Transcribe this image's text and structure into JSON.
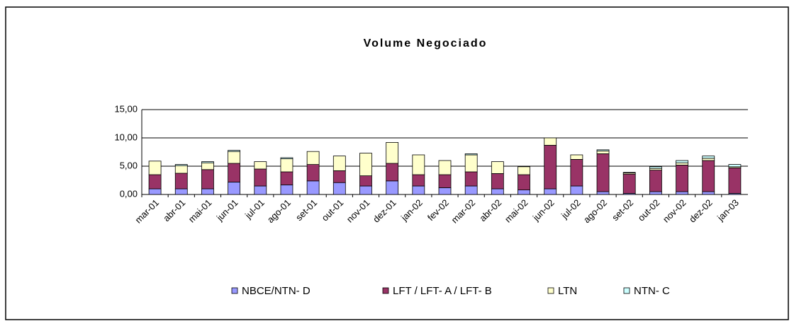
{
  "chart_data": {
    "type": "stacked_bar",
    "title": "Volume Negociado",
    "categories": [
      "mar-01",
      "abr-01",
      "mai-01",
      "jun-01",
      "jul-01",
      "ago-01",
      "set-01",
      "out-01",
      "nov-01",
      "dez-01",
      "jan-02",
      "fev-02",
      "mar-02",
      "abr-02",
      "mai-02",
      "jun-02",
      "jul-02",
      "ago-02",
      "set-02",
      "out-02",
      "nov-02",
      "dez-02",
      "jan-03"
    ],
    "series": [
      {
        "name": "NBCE/NTN- D",
        "color": "#9999ff",
        "values": [
          1.0,
          1.0,
          1.0,
          2.2,
          1.5,
          1.7,
          2.4,
          2.1,
          1.5,
          2.4,
          1.5,
          1.2,
          1.5,
          1.0,
          0.8,
          1.0,
          1.5,
          0.5,
          0.2,
          0.5,
          0.5,
          0.5,
          0.2
        ]
      },
      {
        "name": "LFT / LFT- A / LFT- B",
        "color": "#993366",
        "values": [
          2.5,
          2.75,
          3.4,
          3.3,
          3.0,
          2.3,
          2.9,
          2.1,
          1.8,
          3.1,
          2.0,
          2.3,
          2.5,
          2.7,
          2.7,
          7.7,
          4.7,
          6.7,
          3.4,
          3.8,
          4.7,
          5.5,
          4.5
        ]
      },
      {
        "name": "LTN",
        "color": "#ffffcc",
        "values": [
          2.4,
          1.35,
          1.2,
          2.1,
          1.3,
          2.3,
          2.3,
          2.6,
          4.0,
          3.7,
          3.5,
          2.5,
          3.0,
          2.1,
          1.4,
          1.3,
          0.8,
          0.5,
          0.2,
          0.3,
          0.4,
          0.4,
          0.2
        ]
      },
      {
        "name": "NTN- C",
        "color": "#ccffff",
        "values": [
          0,
          0.2,
          0.2,
          0.2,
          0,
          0.2,
          0,
          0,
          0,
          0,
          0,
          0,
          0.2,
          0,
          0,
          0,
          0,
          0.2,
          0.1,
          0.3,
          0.4,
          0.4,
          0.4
        ]
      }
    ],
    "ylim": [
      0,
      15
    ],
    "yticks": [
      {
        "value": 0,
        "label": "0,00"
      },
      {
        "value": 5,
        "label": "5,00"
      },
      {
        "value": 10,
        "label": "10,00"
      },
      {
        "value": 15,
        "label": "15,00"
      }
    ],
    "grid": true,
    "legend": "bottom"
  }
}
